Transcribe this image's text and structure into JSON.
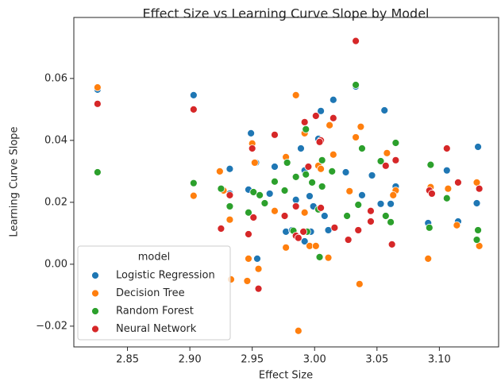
{
  "chart_data": {
    "type": "scatter",
    "title": "Effect Size vs Learning Curve Slope by Model",
    "x_label": "Effect Size",
    "y_label": "Learning Curve Slope",
    "legend_title": "model",
    "legend": "lower left",
    "xlim": [
      2.807,
      3.1475
    ],
    "ylim": [
      -0.0267,
      0.0797
    ],
    "xticks": [
      2.85,
      {
        "value": 2.9,
        "label": "2.90"
      },
      2.95,
      {
        "value": 3.0,
        "label": "3.00"
      },
      3.05,
      {
        "value": 3.1,
        "label": "3.10"
      }
    ],
    "yticks": [
      {
        "value": -0.02,
        "label": "−0.02"
      },
      {
        "value": 0,
        "label": "0.00"
      },
      {
        "value": 0.02,
        "label": "0.02"
      },
      {
        "value": 0.04,
        "label": "0.04"
      },
      {
        "value": 0.06,
        "label": "0.06"
      }
    ],
    "series": [
      {
        "name": "Logistic Regression",
        "color": "#1f77b4",
        "x": [
          2.826,
          2.903,
          2.949,
          2.953,
          2.947,
          2.932,
          2.932,
          2.954,
          2.964,
          2.968,
          2.977,
          2.982,
          2.985,
          2.989,
          2.992,
          2.996,
          2.999,
          3.003,
          3.005,
          3.015,
          3.011,
          3.025,
          3.033,
          3.038,
          3.046,
          3.056,
          3.053,
          3.061,
          3.065,
          3.091,
          3.106,
          3.115,
          3.131,
          3.13,
          3.008,
          2.992,
          2.997
        ],
        "values": [
          0.0564,
          0.0546,
          0.0423,
          0.0328,
          0.0241,
          0.0308,
          0.0228,
          0.0018,
          0.0228,
          0.0315,
          0.0105,
          0.011,
          0.0208,
          0.0374,
          0.0303,
          0.022,
          0.0187,
          0.0405,
          0.0495,
          0.0531,
          0.011,
          0.0297,
          0.0574,
          0.0223,
          0.0287,
          0.0497,
          0.0195,
          0.0195,
          0.0251,
          0.0133,
          0.0303,
          0.0138,
          0.0379,
          0.0197,
          0.0156,
          0.0074,
          0.0105
        ]
      },
      {
        "name": "Decision Tree",
        "color": "#ff7f0e",
        "x": [
          2.826,
          2.903,
          2.924,
          2.927,
          2.933,
          2.946,
          2.947,
          2.95,
          2.952,
          2.955,
          2.968,
          2.977,
          2.985,
          2.987,
          2.992,
          2.992,
          2.977,
          2.996,
          3.003,
          3.005,
          3.001,
          3.012,
          3.015,
          3.011,
          3.028,
          3.033,
          3.037,
          3.036,
          3.058,
          3.065,
          3.063,
          3.093,
          3.091,
          3.107,
          3.114,
          3.13,
          3.132,
          2.932
        ],
        "values": [
          0.0571,
          0.0221,
          0.03,
          0.0238,
          -0.0049,
          -0.0054,
          0.0018,
          0.039,
          0.0328,
          -0.0015,
          0.0172,
          0.0346,
          0.0546,
          -0.0215,
          0.0423,
          0.0167,
          0.0054,
          0.0059,
          0.0318,
          0.0308,
          0.0059,
          0.0449,
          0.0354,
          0.0021,
          0.0236,
          0.041,
          0.0444,
          -0.0064,
          0.0359,
          0.0238,
          0.0223,
          0.0249,
          0.0018,
          0.0244,
          0.0126,
          0.0264,
          0.0059,
          0.0144
        ]
      },
      {
        "name": "Random Forest",
        "color": "#2ca02c",
        "x": [
          2.826,
          2.903,
          2.925,
          2.932,
          2.947,
          2.951,
          2.956,
          2.96,
          2.968,
          2.976,
          2.978,
          2.983,
          2.985,
          2.993,
          2.993,
          2.998,
          3.003,
          3.004,
          3.006,
          3.006,
          3.014,
          3.026,
          3.033,
          3.038,
          3.035,
          3.053,
          3.057,
          3.061,
          3.065,
          3.093,
          3.092,
          3.106,
          3.13,
          3.131,
          2.994
        ],
        "values": [
          0.0297,
          0.0262,
          0.0244,
          0.0187,
          0.0167,
          0.0233,
          0.0223,
          0.0197,
          0.0267,
          0.0238,
          0.0328,
          0.0108,
          0.0282,
          0.0436,
          0.029,
          0.0264,
          0.0177,
          0.0023,
          0.0336,
          0.0251,
          0.03,
          0.0156,
          0.0579,
          0.0374,
          0.0192,
          0.0333,
          0.0156,
          0.0136,
          0.0392,
          0.0321,
          0.0118,
          0.0213,
          0.0079,
          0.011,
          0.0105
        ]
      },
      {
        "name": "Neural Network",
        "color": "#d62728",
        "x": [
          2.826,
          2.903,
          2.925,
          2.932,
          2.947,
          2.95,
          2.951,
          2.955,
          2.968,
          2.976,
          2.985,
          2.985,
          2.987,
          2.991,
          2.992,
          2.995,
          3.001,
          3.005,
          3.004,
          3.005,
          3.015,
          3.016,
          3.027,
          3.033,
          3.035,
          3.045,
          3.045,
          3.057,
          3.062,
          3.065,
          3.092,
          3.094,
          3.106,
          3.115,
          3.132
        ],
        "values": [
          0.0518,
          0.05,
          0.0115,
          0.0223,
          0.0097,
          0.0374,
          0.0151,
          -0.0079,
          0.0418,
          0.0156,
          0.0092,
          0.0187,
          0.0085,
          0.0105,
          0.0459,
          0.0315,
          0.0479,
          0.04,
          0.0395,
          0.0182,
          0.0472,
          0.0118,
          0.0079,
          0.0721,
          0.011,
          0.0172,
          0.0138,
          0.0318,
          0.0064,
          0.0336,
          0.0238,
          0.0228,
          0.0374,
          0.0264,
          0.0244
        ]
      }
    ]
  }
}
